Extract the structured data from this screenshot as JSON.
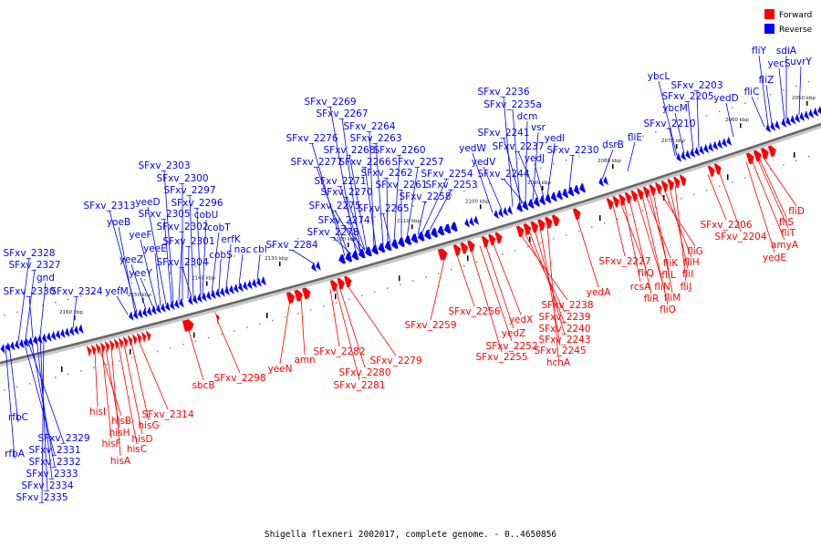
{
  "caption": "Shigella flexneri 2002017, complete genome. - 0..4650856",
  "legend": [
    {
      "label": "Forward",
      "color": "#ff0000"
    },
    {
      "label": "Reverse",
      "color": "#0000ff"
    }
  ],
  "colors": {
    "forward": "#ff0000",
    "reverse": "#0000ff",
    "backbone": "#666666"
  },
  "ticks": [
    "2160 kbp",
    "2150 kbp",
    "2140 kbp",
    "2130 kbp",
    "2120 kbp",
    "2110 kbp",
    "2100 kbp",
    "2090 kbp",
    "2080 kbp",
    "2070 kbp",
    "2060 kbp",
    "2050 kbp"
  ],
  "reverse_labels": [
    "SFxv_2328",
    "SFxv_2327",
    "gnd",
    "SFxv_2330",
    "SFxv_2324",
    "SFxv_2313",
    "yoeB",
    "yefM",
    "yeeZ",
    "yeeY",
    "yeeF",
    "yeeE",
    "yeeD",
    "SFxv_2305",
    "SFxv_2303",
    "SFxv_2300",
    "SFxv_2297",
    "SFxv_2296",
    "cobU",
    "SFxv_2302",
    "cobT",
    "SFxv_2301",
    "cobS",
    "erfK",
    "SFxv_2304",
    "nac",
    "cbl",
    "SFxv_2284",
    "SFxv_2269",
    "SFxv_2267",
    "SFxv_2276",
    "SFxv_2264",
    "SFxv_2268",
    "SFxv_2263",
    "SFxv_2277",
    "SFxv_2266",
    "SFxv_2260",
    "SFxv_2262",
    "SFxv_2257",
    "SFxv_2271",
    "SFxv_2261",
    "SFxv_2254",
    "SFxv_2270",
    "SFxv_2253",
    "SFxv_2275",
    "SFxv_2265",
    "SFxv_2258",
    "SFxv_2274",
    "SFxv_2278",
    "SFxv_2236",
    "SFxv_2235a",
    "dcm",
    "vsr",
    "SFxv_2241",
    "yedI",
    "yedW",
    "SFxv_2237",
    "SFxv_2230",
    "yedV",
    "yedJ",
    "SFxv_2244",
    "dsrB",
    "fliE",
    "ybcL",
    "SFxv_2203",
    "SFxv_2205",
    "ybcM",
    "yedD",
    "SFxv_2210",
    "fliY",
    "sdiA",
    "fliZ",
    "yecS",
    "uvrY",
    "fliC",
    "rfbC",
    "rfbA",
    "SFxv_2329",
    "SFxv_2331",
    "SFxv_2332",
    "SFxv_2333",
    "SFxv_2334",
    "SFxv_2335"
  ],
  "forward_labels": [
    "hisI",
    "hisB",
    "hisH",
    "hisF",
    "hisA",
    "hisC",
    "hisD",
    "hisG",
    "SFxv_2314",
    "sbcB",
    "SFxv_2298",
    "yeeN",
    "amn",
    "SFxv_2282",
    "SFxv_2280",
    "SFxv_2281",
    "SFxv_2279",
    "SFxv_2259",
    "SFxv_2256",
    "yedX",
    "yedZ",
    "SFxv_2252",
    "SFxv_2255",
    "SFxv_2238",
    "SFxv_2239",
    "SFxv_2240",
    "SFxv_2243",
    "SFxv_2245",
    "hchA",
    "yedA",
    "SFxv_2227",
    "fliQ",
    "rcsA",
    "fliR",
    "fliN",
    "fliK",
    "fliL",
    "fliM",
    "fliO",
    "fliG",
    "fliH",
    "fliI",
    "fliJ",
    "SFxv_2206",
    "SFxv_2204",
    "fliD",
    "fliS",
    "fliT",
    "amyA",
    "yedE"
  ]
}
